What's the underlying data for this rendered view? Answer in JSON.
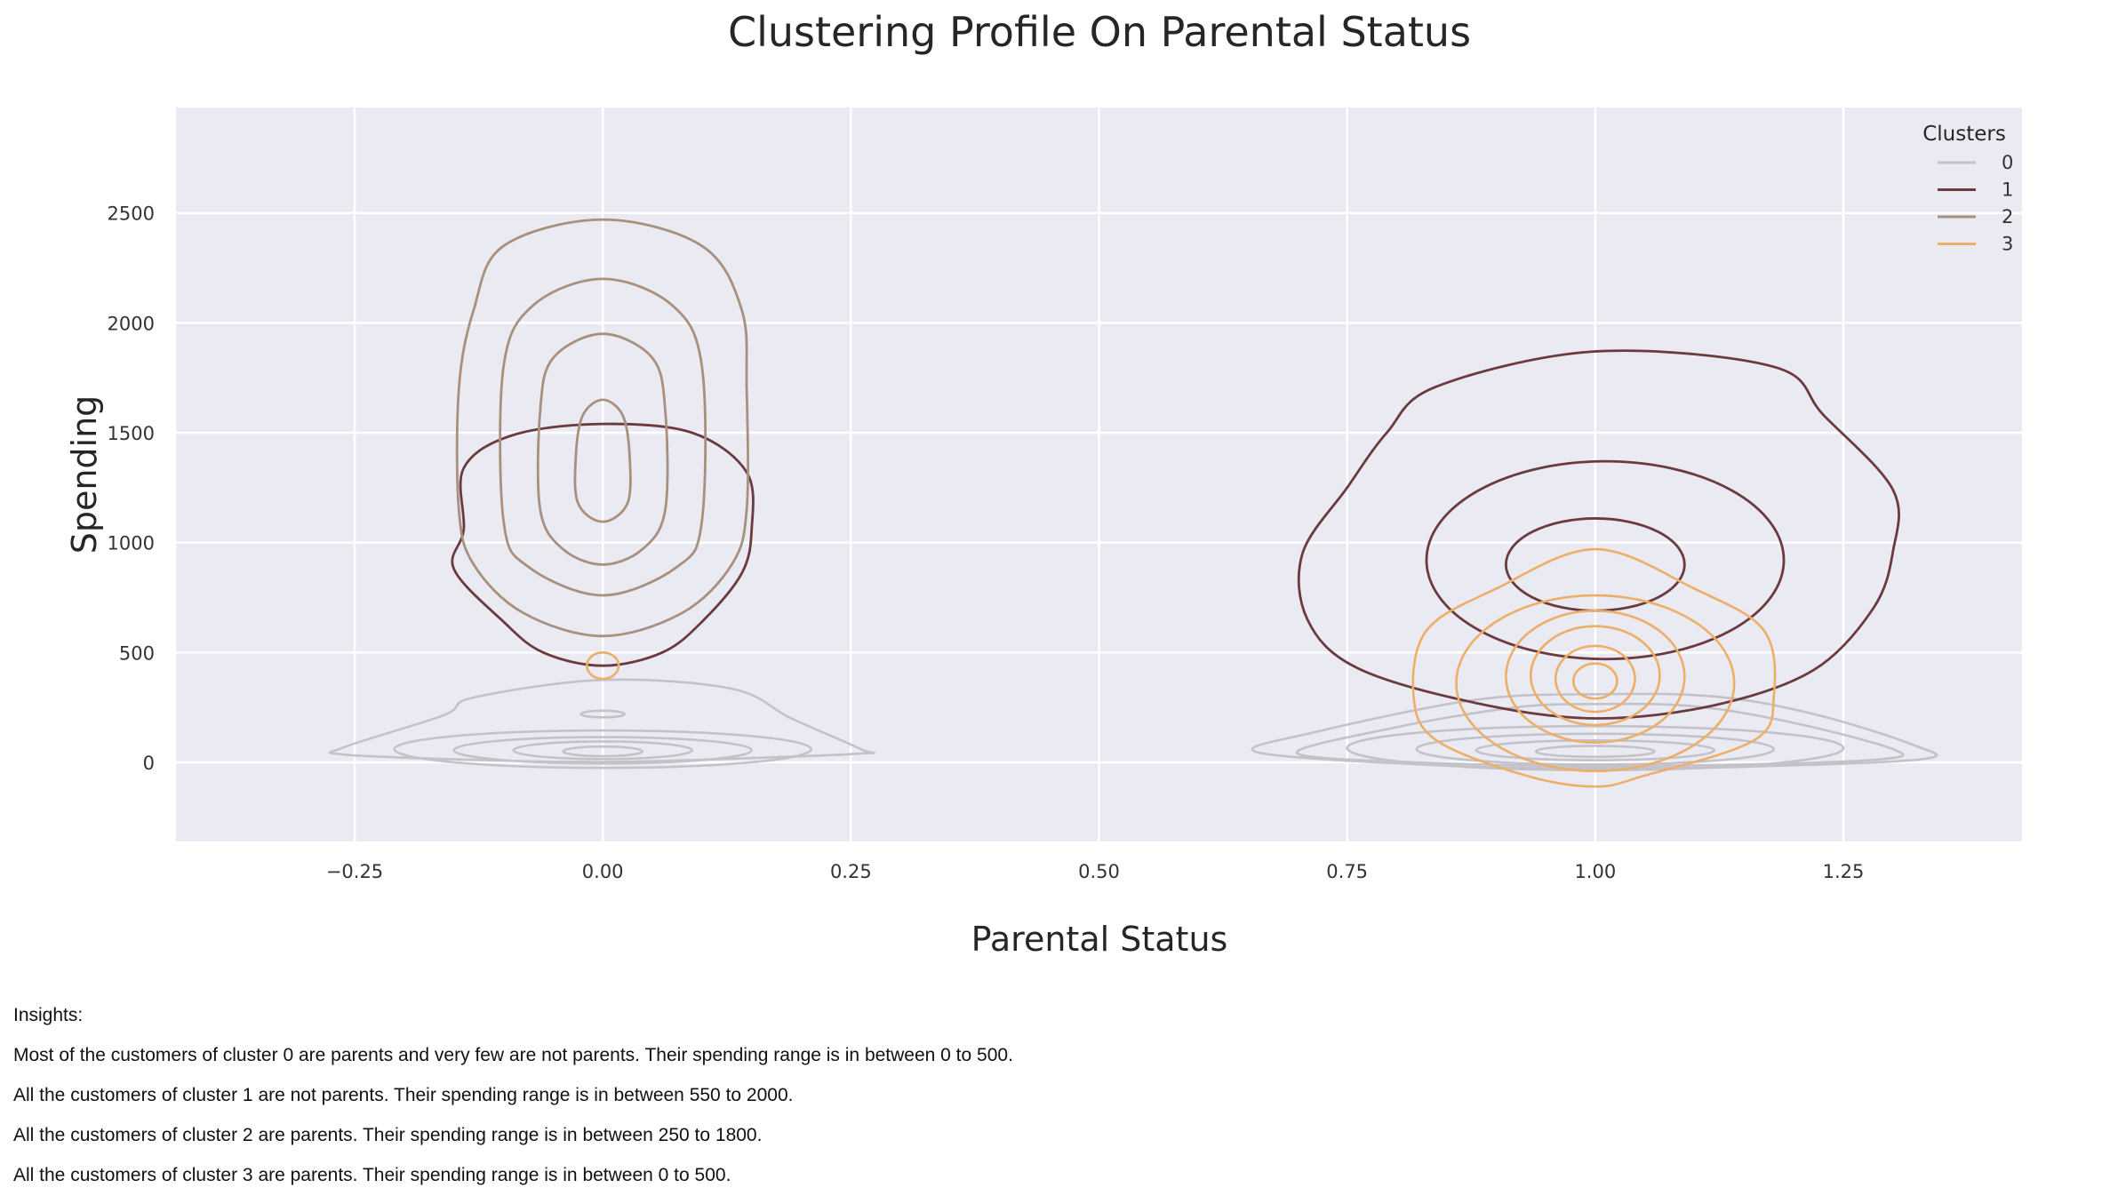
{
  "chart_data": {
    "type": "kde-contour",
    "title": "Clustering Profile On Parental Status",
    "xlabel": "Parental Status",
    "ylabel": "Spending",
    "xlim": [
      -0.43,
      1.43
    ],
    "ylim": [
      -360,
      2980
    ],
    "x_ticks": [
      -0.25,
      0.0,
      0.25,
      0.5,
      0.75,
      1.0,
      1.25
    ],
    "x_tick_labels": [
      "−0.25",
      "0.00",
      "0.25",
      "0.50",
      "0.75",
      "1.00",
      "1.25"
    ],
    "y_ticks": [
      0,
      500,
      1000,
      1500,
      2000,
      2500
    ],
    "y_tick_labels": [
      "0",
      "500",
      "1000",
      "1500",
      "2000",
      "2500"
    ],
    "grid": true,
    "legend": {
      "title": "Clusters",
      "placement": "top-right"
    },
    "series": [
      {
        "name": "0",
        "color": "#c2c2c8",
        "width": 2.6,
        "contours": [
          {
            "pts": [
              [
                -0.13,
                295
              ],
              [
                0.0,
                375
              ],
              [
                0.13,
                335
              ],
              [
                0.19,
                200
              ],
              [
                0.26,
                60
              ],
              [
                0.26,
                40
              ],
              [
                0.12,
                15
              ],
              [
                0.0,
                2
              ],
              [
                -0.12,
                10
              ],
              [
                -0.26,
                35
              ],
              [
                -0.26,
                70
              ],
              [
                -0.16,
                215
              ],
              [
                -0.13,
                295
              ]
            ]
          },
          {
            "ellipse": [
              0.0,
              60,
              0.21,
              85
            ]
          },
          {
            "ellipse": [
              0.0,
              55,
              0.15,
              60
            ]
          },
          {
            "ellipse": [
              0.0,
              55,
              0.09,
              40
            ]
          },
          {
            "ellipse": [
              0.0,
              50,
              0.04,
              22
            ]
          },
          {
            "ellipse": [
              0.0,
              220,
              0.022,
              15
            ]
          },
          {
            "pts": [
              [
                0.72,
                140
              ],
              [
                0.88,
                285
              ],
              [
                1.0,
                310
              ],
              [
                1.12,
                300
              ],
              [
                1.22,
                220
              ],
              [
                1.32,
                80
              ],
              [
                1.33,
                15
              ],
              [
                1.15,
                -20
              ],
              [
                1.0,
                -25
              ],
              [
                0.85,
                -15
              ],
              [
                0.66,
                45
              ],
              [
                0.72,
                140
              ]
            ]
          },
          {
            "pts": [
              [
                0.8,
                160
              ],
              [
                0.92,
                250
              ],
              [
                1.0,
                265
              ],
              [
                1.1,
                255
              ],
              [
                1.2,
                180
              ],
              [
                1.3,
                60
              ],
              [
                1.29,
                15
              ],
              [
                1.15,
                -10
              ],
              [
                1.0,
                -15
              ],
              [
                0.85,
                -5
              ],
              [
                0.7,
                40
              ],
              [
                0.8,
                160
              ]
            ]
          },
          {
            "ellipse": [
              1.0,
              65,
              0.25,
              100
            ]
          },
          {
            "ellipse": [
              1.0,
              60,
              0.18,
              70
            ]
          },
          {
            "ellipse": [
              1.0,
              55,
              0.12,
              45
            ]
          },
          {
            "ellipse": [
              1.0,
              50,
              0.06,
              25
            ]
          }
        ]
      },
      {
        "name": "1",
        "color": "#6b3a3e",
        "width": 2.8,
        "contours": [
          {
            "pts": [
              [
                0.0,
                1540
              ],
              [
                0.09,
                1500
              ],
              [
                0.145,
                1320
              ],
              [
                0.15,
                1060
              ],
              [
                0.14,
                860
              ],
              [
                0.1,
                640
              ],
              [
                0.06,
                500
              ],
              [
                0.0,
                440
              ],
              [
                -0.06,
                500
              ],
              [
                -0.1,
                640
              ],
              [
                -0.15,
                880
              ],
              [
                -0.14,
                1060
              ],
              [
                -0.14,
                1340
              ],
              [
                -0.09,
                1490
              ],
              [
                0.0,
                1540
              ]
            ]
          },
          {
            "pts": [
              [
                1.0,
                1870
              ],
              [
                1.18,
                1800
              ],
              [
                1.23,
                1580
              ],
              [
                1.3,
                1240
              ],
              [
                1.3,
                960
              ],
              [
                1.28,
                700
              ],
              [
                1.22,
                420
              ],
              [
                1.12,
                260
              ],
              [
                1.0,
                200
              ],
              [
                0.88,
                270
              ],
              [
                0.76,
                430
              ],
              [
                0.71,
                650
              ],
              [
                0.705,
                950
              ],
              [
                0.75,
                1250
              ],
              [
                0.79,
                1500
              ],
              [
                0.84,
                1710
              ],
              [
                1.0,
                1870
              ]
            ]
          },
          {
            "ellipse": [
              1.01,
              920,
              0.18,
              450
            ]
          },
          {
            "ellipse": [
              1.0,
              900,
              0.09,
              210
            ]
          }
        ]
      },
      {
        "name": "2",
        "color": "#a8907f",
        "width": 2.8,
        "contours": [
          {
            "pts": [
              [
                0.0,
                2470
              ],
              [
                0.1,
                2350
              ],
              [
                0.14,
                2060
              ],
              [
                0.145,
                1700
              ],
              [
                0.145,
                1150
              ],
              [
                0.13,
                900
              ],
              [
                0.08,
                680
              ],
              [
                0.0,
                575
              ],
              [
                -0.08,
                680
              ],
              [
                -0.13,
                900
              ],
              [
                -0.145,
                1150
              ],
              [
                -0.145,
                1700
              ],
              [
                -0.13,
                2060
              ],
              [
                -0.1,
                2350
              ],
              [
                0.0,
                2470
              ]
            ]
          },
          {
            "pts": [
              [
                0.0,
                2200
              ],
              [
                0.07,
                2080
              ],
              [
                0.1,
                1800
              ],
              [
                0.1,
                1100
              ],
              [
                0.075,
                890
              ],
              [
                0.0,
                760
              ],
              [
                -0.075,
                890
              ],
              [
                -0.1,
                1100
              ],
              [
                -0.1,
                1800
              ],
              [
                -0.07,
                2080
              ],
              [
                0.0,
                2200
              ]
            ]
          },
          {
            "pts": [
              [
                0.0,
                1950
              ],
              [
                0.05,
                1840
              ],
              [
                0.063,
                1600
              ],
              [
                0.063,
                1150
              ],
              [
                0.04,
                970
              ],
              [
                0.0,
                900
              ],
              [
                -0.04,
                970
              ],
              [
                -0.063,
                1150
              ],
              [
                -0.063,
                1600
              ],
              [
                -0.05,
                1840
              ],
              [
                0.0,
                1950
              ]
            ]
          },
          {
            "pts": [
              [
                0.0,
                1650
              ],
              [
                0.02,
                1580
              ],
              [
                0.027,
                1400
              ],
              [
                0.025,
                1180
              ],
              [
                0.0,
                1095
              ],
              [
                -0.025,
                1180
              ],
              [
                -0.027,
                1400
              ],
              [
                -0.02,
                1580
              ],
              [
                0.0,
                1650
              ]
            ]
          }
        ]
      },
      {
        "name": "3",
        "color": "#edae68",
        "width": 2.6,
        "contours": [
          {
            "pts": [
              [
                1.0,
                970
              ],
              [
                1.1,
                790
              ],
              [
                1.17,
                600
              ],
              [
                1.18,
                300
              ],
              [
                1.16,
                100
              ],
              [
                1.05,
                -60
              ],
              [
                1.0,
                -110
              ],
              [
                0.93,
                -60
              ],
              [
                0.84,
                100
              ],
              [
                0.817,
                300
              ],
              [
                0.83,
                600
              ],
              [
                0.9,
                790
              ],
              [
                1.0,
                970
              ]
            ]
          },
          {
            "ellipse": [
              1.0,
              360,
              0.14,
              400
            ]
          },
          {
            "ellipse": [
              1.0,
              390,
              0.09,
              300
            ]
          },
          {
            "ellipse": [
              1.0,
              395,
              0.065,
              225
            ]
          },
          {
            "ellipse": [
              1.0,
              380,
              0.04,
              150
            ]
          },
          {
            "ellipse": [
              1.0,
              370,
              0.022,
              80
            ]
          },
          {
            "ellipse": [
              0.0,
              440,
              0.016,
              60
            ]
          }
        ]
      }
    ]
  },
  "insights": {
    "heading": "Insights:",
    "lines": [
      "Most of the customers of cluster 0 are parents and very few are not parents. Their spending range is in between 0 to 500.",
      "All the customers of cluster 1 are not parents. Their spending range is in between 550 to 2000.",
      "All the customers of cluster 2 are parents. Their spending range is in between 250 to 1800.",
      "All the customers of cluster 3 are parents. Their spending range is in between 0 to 500."
    ]
  }
}
